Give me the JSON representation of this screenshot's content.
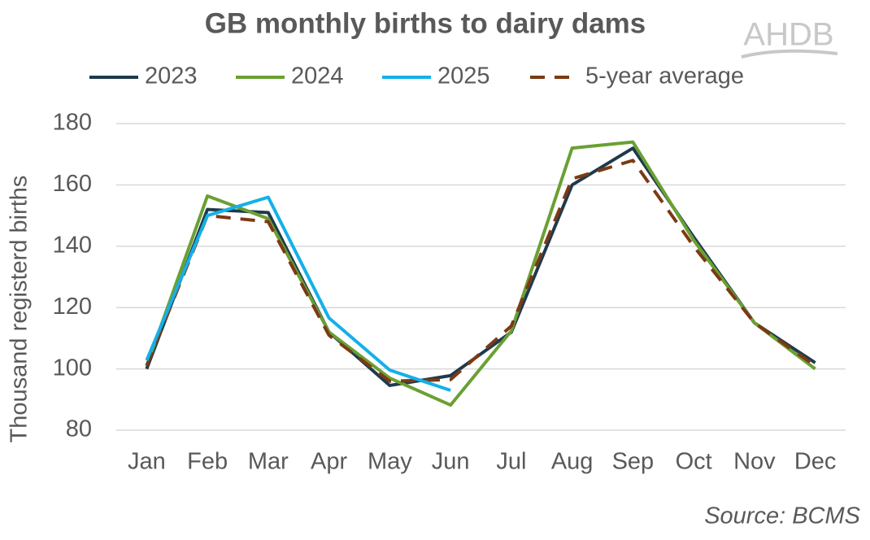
{
  "chart_data": {
    "type": "line",
    "title": "GB monthly births to dairy dams",
    "logo": "AHDB",
    "y_label": "Thousand registerd births",
    "source": "Source: BCMS",
    "categories": [
      "Jan",
      "Feb",
      "Mar",
      "Apr",
      "May",
      "Jun",
      "Jul",
      "Aug",
      "Sep",
      "Oct",
      "Nov",
      "Dec"
    ],
    "series": [
      {
        "name": "2023",
        "color": "#1f3a4d",
        "dashed": false,
        "values": [
          100,
          152,
          151,
          112,
          94.6,
          97.8,
          112,
          160,
          172,
          143,
          115,
          102
        ]
      },
      {
        "name": "2024",
        "color": "#6aa032",
        "dashed": false,
        "values": [
          101,
          156.4,
          149,
          112,
          97,
          88.2,
          112.4,
          172,
          174,
          142,
          115,
          100
        ]
      },
      {
        "name": "2025",
        "color": "#14b0e8",
        "dashed": false,
        "values": [
          102.8,
          150,
          156,
          116.6,
          99.6,
          93,
          null,
          null,
          null,
          null,
          null,
          null
        ]
      },
      {
        "name": "5-year average",
        "color": "#7b3a14",
        "dashed": true,
        "values": [
          101,
          150,
          148,
          111,
          96,
          96.5,
          114,
          162,
          168,
          140,
          115,
          101
        ]
      }
    ],
    "ylim": [
      80,
      180
    ],
    "yticks": [
      80,
      100,
      120,
      140,
      160,
      180
    ],
    "grid": true,
    "legend_position": "top"
  }
}
